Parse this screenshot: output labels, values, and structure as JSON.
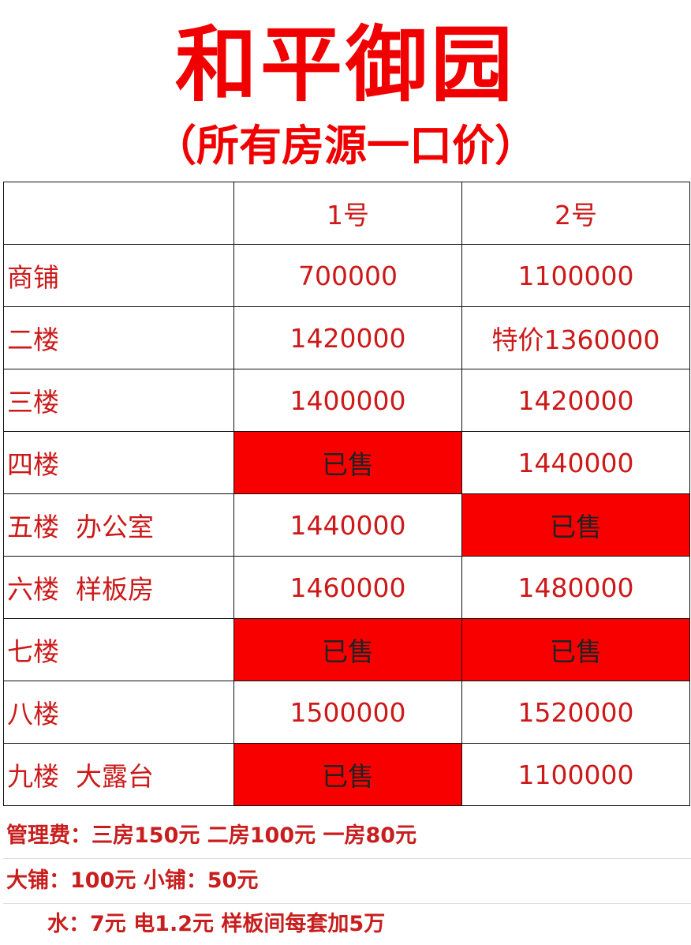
{
  "header": {
    "title": "和平御园",
    "subtitle": "（所有房源一口价）"
  },
  "table": {
    "columns": [
      "",
      "1号",
      "2号"
    ],
    "rows": [
      {
        "floor": "商铺",
        "unit1": "700000",
        "unit2": "1100000",
        "unit1_sold": false,
        "unit2_sold": false
      },
      {
        "floor": "二楼",
        "unit1": "1420000",
        "unit2": "特价1360000",
        "unit1_sold": false,
        "unit2_sold": false
      },
      {
        "floor": "三楼",
        "unit1": "1400000",
        "unit2": "1420000",
        "unit1_sold": false,
        "unit2_sold": false
      },
      {
        "floor": "四楼",
        "unit1": "已售",
        "unit2": "1440000",
        "unit1_sold": true,
        "unit2_sold": false
      },
      {
        "floor": "五楼  办公室",
        "unit1": "1440000",
        "unit2": "已售",
        "unit1_sold": false,
        "unit2_sold": true
      },
      {
        "floor": "六楼  样板房",
        "unit1": "1460000",
        "unit2": "1480000",
        "unit1_sold": false,
        "unit2_sold": false
      },
      {
        "floor": "七楼",
        "unit1": "已售",
        "unit2": "已售",
        "unit1_sold": true,
        "unit2_sold": true
      },
      {
        "floor": "八楼",
        "unit1": "1500000",
        "unit2": "1520000",
        "unit1_sold": false,
        "unit2_sold": false
      },
      {
        "floor": "九楼  大露台",
        "unit1": "已售",
        "unit2": "1100000",
        "unit1_sold": true,
        "unit2_sold": false
      }
    ]
  },
  "footer": {
    "management_fee": "管理费：三房150元  二房100元 一房80元",
    "shop_fee": "大铺：100元 小铺：50元",
    "utilities": "水：7元 电1.2元 样板间每套加5万"
  },
  "colors": {
    "text_red": "#cc1a1a",
    "title_red": "#f00000",
    "sold_bg": "#f80000"
  }
}
